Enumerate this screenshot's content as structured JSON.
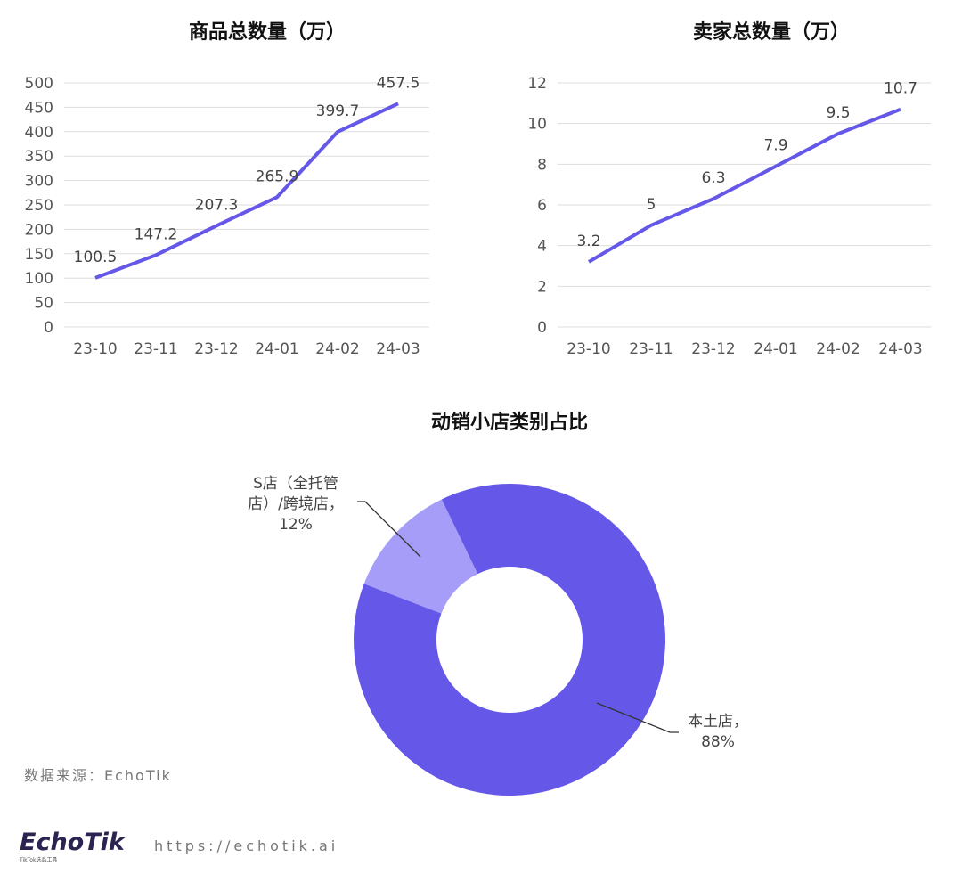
{
  "chart_data": [
    {
      "type": "line",
      "title": "商品总数量（万）",
      "categories": [
        "23-10",
        "23-11",
        "23-12",
        "24-01",
        "24-02",
        "24-03"
      ],
      "values": [
        100.5,
        147.2,
        207.3,
        265.9,
        399.7,
        457.5
      ],
      "ylim": [
        0,
        500
      ],
      "yticks": [
        0,
        50,
        100,
        150,
        200,
        250,
        300,
        350,
        400,
        450,
        500
      ],
      "grid": true,
      "color": "#6558e8"
    },
    {
      "type": "line",
      "title": "卖家总数量（万）",
      "categories": [
        "23-10",
        "23-11",
        "23-12",
        "24-01",
        "24-02",
        "24-03"
      ],
      "values": [
        3.2,
        5,
        6.3,
        7.9,
        9.5,
        10.7
      ],
      "ylim": [
        0,
        12
      ],
      "yticks": [
        0,
        2,
        4,
        6,
        8,
        10,
        12
      ],
      "grid": true,
      "color": "#6558e8"
    },
    {
      "type": "pie",
      "title": "动销小店类别占比",
      "slices": [
        {
          "label_lines": [
            "S店（全托管",
            "店）/跨境店，",
            "12%"
          ],
          "value": 12,
          "color": "#a59df7"
        },
        {
          "label_lines": [
            "本土店，",
            "88%"
          ],
          "value": 88,
          "color": "#6558e8"
        }
      ]
    }
  ],
  "footer": {
    "source": "数据来源：EchoTik",
    "logo": "EchoTik",
    "logo_sub": "TikTok选品工具",
    "url": "https://echotik.ai"
  }
}
